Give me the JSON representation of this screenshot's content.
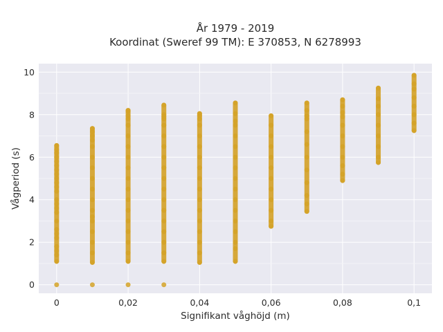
{
  "chart_data": {
    "type": "scatter",
    "title": "År 1979 - 2019",
    "subtitle": "Koordinat (Sweref 99 TM): E 370853, N 6278993",
    "xlabel": "Signifikant våghöjd (m)",
    "ylabel": "Vågperiod (s)",
    "xlim": [
      -0.005,
      0.105
    ],
    "ylim": [
      -0.4,
      10.4
    ],
    "x_ticks": [
      0,
      0.02,
      0.04,
      0.06,
      0.08,
      0.1
    ],
    "x_tick_labels": [
      "0",
      "0,02",
      "0,04",
      "0,06",
      "0,08",
      "0,1"
    ],
    "y_ticks": [
      0,
      2,
      4,
      6,
      8,
      10
    ],
    "y_tick_labels": [
      "0",
      "2",
      "4",
      "6",
      "8",
      "10"
    ],
    "grid": true,
    "marker_color": "#D4A227",
    "background_color": "#E9E9F1",
    "series": [
      {
        "x": [
          0,
          0,
          0,
          0,
          0,
          0,
          0,
          0,
          0,
          0,
          0,
          0,
          0,
          0,
          0,
          0,
          0,
          0,
          0,
          0,
          0,
          0,
          0,
          0,
          0
        ],
        "y": [
          0,
          1.1,
          1.4,
          1.8,
          2.2,
          2.6,
          3.0,
          3.4,
          3.8,
          4.0,
          4.4,
          4.6,
          4.8,
          5.0,
          5.2,
          5.4,
          5.6,
          5.8,
          6.0,
          6.2,
          6.35,
          6.55,
          3.6,
          2.4,
          1.6
        ]
      },
      {
        "x": [
          0.01,
          0.01,
          0.01,
          0.01,
          0.01,
          0.01,
          0.01,
          0.01,
          0.01,
          0.01,
          0.01,
          0.01,
          0.01,
          0.01,
          0.01,
          0.01,
          0.01,
          0.01
        ],
        "y": [
          0,
          1.05,
          1.5,
          2.0,
          2.5,
          3.0,
          3.5,
          4.0,
          4.5,
          5.0,
          5.5,
          6.0,
          6.5,
          7.0,
          7.2,
          7.35,
          6.8,
          3.2
        ]
      },
      {
        "x": [
          0.02,
          0.02,
          0.02,
          0.02,
          0.02,
          0.02,
          0.02,
          0.02,
          0.02,
          0.02,
          0.02,
          0.02,
          0.02,
          0.02,
          0.02,
          0.02,
          0.02,
          0.02,
          0.02
        ],
        "y": [
          0,
          1.1,
          1.5,
          2.0,
          2.5,
          3.0,
          3.5,
          4.0,
          4.5,
          5.0,
          5.5,
          6.0,
          6.5,
          7.0,
          7.5,
          7.8,
          7.95,
          8.15,
          8.2
        ]
      },
      {
        "x": [
          0.03,
          0.03,
          0.03,
          0.03,
          0.03,
          0.03,
          0.03,
          0.03,
          0.03,
          0.03,
          0.03,
          0.03,
          0.03,
          0.03,
          0.03,
          0.03,
          0.03,
          0.03,
          0.03
        ],
        "y": [
          0,
          1.1,
          1.5,
          2.0,
          2.5,
          3.0,
          3.5,
          4.0,
          4.5,
          5.0,
          5.5,
          6.0,
          6.5,
          7.0,
          7.5,
          7.8,
          7.9,
          8.0,
          8.45
        ]
      },
      {
        "x": [
          0.04,
          0.04,
          0.04,
          0.04,
          0.04,
          0.04,
          0.04,
          0.04,
          0.04,
          0.04,
          0.04,
          0.04,
          0.04,
          0.04,
          0.04,
          0.04,
          0.04
        ],
        "y": [
          1.05,
          1.5,
          2.0,
          2.5,
          3.0,
          3.5,
          4.0,
          4.5,
          5.0,
          5.5,
          6.0,
          6.5,
          7.0,
          7.5,
          7.8,
          7.95,
          8.05
        ]
      },
      {
        "x": [
          0.05,
          0.05,
          0.05,
          0.05,
          0.05,
          0.05,
          0.05,
          0.05,
          0.05,
          0.05,
          0.05,
          0.05,
          0.05,
          0.05,
          0.05,
          0.05,
          0.05
        ],
        "y": [
          1.1,
          1.7,
          2.0,
          2.5,
          3.0,
          3.5,
          4.0,
          4.5,
          5.0,
          5.5,
          6.0,
          6.5,
          7.0,
          7.5,
          7.7,
          8.05,
          8.55
        ]
      },
      {
        "x": [
          0.06,
          0.06,
          0.06,
          0.06,
          0.06,
          0.06,
          0.06,
          0.06,
          0.06,
          0.06,
          0.06,
          0.06
        ],
        "y": [
          2.75,
          3.0,
          3.5,
          4.0,
          4.5,
          5.0,
          5.5,
          6.0,
          6.5,
          7.0,
          7.5,
          7.95
        ]
      },
      {
        "x": [
          0.07,
          0.07,
          0.07,
          0.07,
          0.07,
          0.07,
          0.07,
          0.07,
          0.07,
          0.07,
          0.07,
          0.07
        ],
        "y": [
          3.45,
          3.8,
          4.2,
          4.8,
          5.4,
          6.0,
          6.6,
          7.2,
          7.8,
          7.95,
          8.2,
          8.55
        ]
      },
      {
        "x": [
          0.08,
          0.08,
          0.08,
          0.08,
          0.08,
          0.08,
          0.08,
          0.08,
          0.08,
          0.08,
          0.08
        ],
        "y": [
          4.9,
          5.2,
          5.6,
          6.0,
          6.5,
          7.0,
          7.5,
          7.9,
          8.1,
          8.4,
          8.7
        ]
      },
      {
        "x": [
          0.09,
          0.09,
          0.09,
          0.09,
          0.09,
          0.09,
          0.09,
          0.09,
          0.09
        ],
        "y": [
          5.75,
          6.0,
          6.5,
          7.0,
          7.5,
          8.0,
          8.4,
          8.75,
          9.25
        ]
      },
      {
        "x": [
          0.1,
          0.1,
          0.1,
          0.1,
          0.1,
          0.1,
          0.1,
          0.1
        ],
        "y": [
          7.25,
          7.6,
          8.0,
          8.4,
          8.8,
          9.2,
          9.45,
          9.85
        ]
      }
    ]
  }
}
